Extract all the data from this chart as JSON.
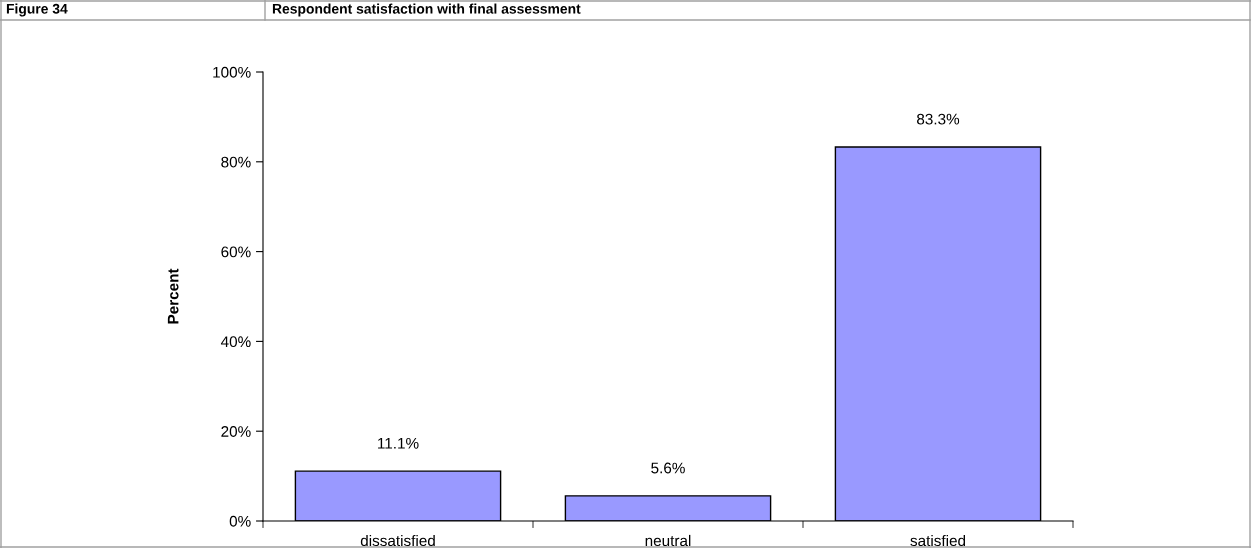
{
  "chart_data": {
    "type": "bar",
    "title": "Respondent satisfaction with final assessment",
    "annotations": [
      "Figure 34"
    ],
    "ylabel": "Percent",
    "categories": [
      "dissatisfied",
      "neutral",
      "satisfied"
    ],
    "values": [
      11.1,
      5.6,
      83.3
    ],
    "value_labels": [
      "11.1%",
      "5.6%",
      "83.3%"
    ],
    "color": "#9999ff",
    "ylim": [
      0,
      100
    ],
    "yticks": [
      {
        "value": 0,
        "label": "0%"
      },
      {
        "value": 20,
        "label": "20%"
      },
      {
        "value": 40,
        "label": "40%"
      },
      {
        "value": 60,
        "label": "60%"
      },
      {
        "value": 80,
        "label": "80%"
      },
      {
        "value": 100,
        "label": "100%"
      }
    ],
    "grid": false,
    "legend": false
  }
}
